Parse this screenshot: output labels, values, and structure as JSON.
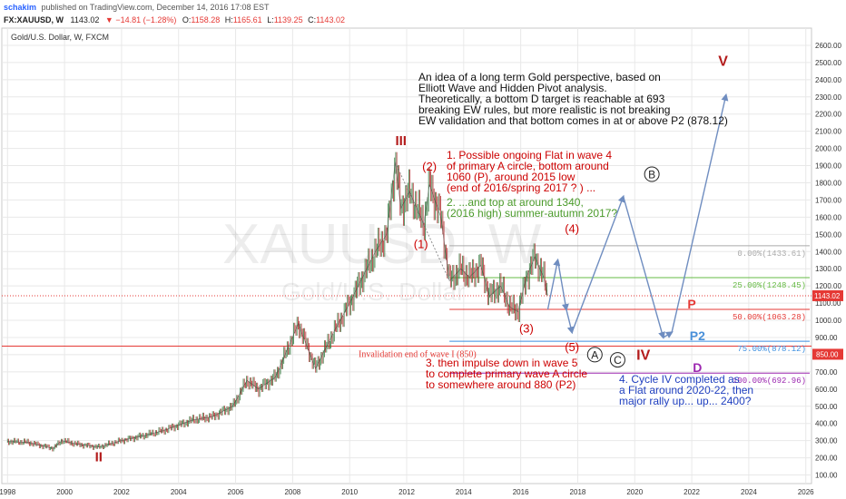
{
  "header": {
    "user": "schakim",
    "published": "published on TradingView.com, December 14, 2016 17:08 EST"
  },
  "ohlc_line": {
    "symbol": "FX:XAUUSD, W",
    "last": "1143.02",
    "change": "▼ −14.81 (−1.28%)",
    "o_label": "O:",
    "o": "1158.28",
    "h_label": "H:",
    "h": "1165.61",
    "l_label": "L:",
    "l": "1139.25",
    "c_label": "C:",
    "c": "1143.02"
  },
  "instrument": "Gold/U.S. Dollar, W, FXCM",
  "watermark": {
    "symbol": "XAUUSD, W",
    "name": "Gold/U.S. Dollar"
  },
  "colors": {
    "red": "#cc0000",
    "blue": "#1f3fbf",
    "green": "#4a9a2a",
    "arrow": "#6f8dc0",
    "price": "#e53935",
    "purple": "#9c27b0",
    "p2": "#3b8ee0",
    "grid": "#e8e8e8"
  },
  "chart_data": {
    "type": "line",
    "title": "Gold/U.S. Dollar, W, FXCM",
    "xlim": [
      1997.8,
      2026.2
    ],
    "ylim": [
      50,
      2700
    ],
    "x": [
      1998.0,
      1998.7,
      1999.6,
      1999.9,
      2000.4,
      2001.2,
      2002.0,
      2002.8,
      2003.5,
      2004.5,
      2005.2,
      2005.9,
      2006.4,
      2006.8,
      2007.4,
      2008.2,
      2008.8,
      2009.5,
      2010.0,
      2010.9,
      2011.3,
      2011.6,
      2011.8,
      2012.1,
      2012.6,
      2012.8,
      2013.2,
      2013.5,
      2013.9,
      2014.2,
      2014.6,
      2014.9,
      2015.3,
      2015.6,
      2015.9,
      2016.2,
      2016.5,
      2016.8,
      2016.95
    ],
    "values": [
      295,
      290,
      255,
      300,
      280,
      262,
      300,
      330,
      360,
      420,
      440,
      500,
      650,
      600,
      670,
      980,
      720,
      950,
      1100,
      1400,
      1500,
      1920,
      1650,
      1750,
      1560,
      1790,
      1600,
      1230,
      1300,
      1250,
      1320,
      1140,
      1200,
      1080,
      1050,
      1250,
      1370,
      1250,
      1143
    ],
    "last_price": "1143.02",
    "y_ticks": [
      "100.00",
      "200.00",
      "300.00",
      "400.00",
      "500.00",
      "600.00",
      "700.00",
      "800.00",
      "900.00",
      "1000.00",
      "1100.00",
      "1200.00",
      "1300.00",
      "1400.00",
      "1500.00",
      "1600.00",
      "1700.00",
      "1800.00",
      "1900.00",
      "2000.00",
      "2100.00",
      "2200.00",
      "2300.00",
      "2400.00",
      "2500.00",
      "2600.00"
    ],
    "x_ticks": [
      "1998",
      "2000",
      "2002",
      "2004",
      "2006",
      "2008",
      "2010",
      "2012",
      "2014",
      "2016",
      "2018",
      "2020",
      "2022",
      "2024",
      "2026"
    ],
    "fib_levels": [
      {
        "label": "0.00%(1433.61)",
        "price": 1433.61,
        "color": "#aaaaaa"
      },
      {
        "label": "25.00%(1248.45)",
        "price": 1248.45,
        "color": "#66bb44"
      },
      {
        "label": "50.00%(1063.28)",
        "price": 1063.28,
        "color": "#e53935"
      },
      {
        "label": "75.00%(878.12)",
        "price": 878.12,
        "color": "#3b8ee0"
      },
      {
        "label": "100.00%(692.96)",
        "price": 692.96,
        "color": "#9c27b0"
      }
    ],
    "invalidation": {
      "price": 850,
      "label": "Invalidation end of wave I (850)",
      "tag": "850.00"
    },
    "projection": {
      "x": [
        2016.95,
        2017.3,
        2017.6,
        2017.8,
        2019.6,
        2021.0,
        2021.3,
        2023.2
      ],
      "values": [
        1063,
        1350,
        1063,
        930,
        1720,
        900,
        930,
        2310
      ]
    },
    "wave_labels": [
      {
        "text": "II",
        "x": 2001.2,
        "y": 180,
        "color": "#b31b1b",
        "size": 15,
        "bold": true
      },
      {
        "text": "III",
        "x": 2011.8,
        "y": 2020,
        "color": "#b31b1b",
        "size": 15,
        "bold": true
      },
      {
        "text": "(2)",
        "x": 2012.8,
        "y": 1870,
        "color": "#cc0000",
        "size": 13
      },
      {
        "text": "(1)",
        "x": 2012.5,
        "y": 1420,
        "color": "#cc0000",
        "size": 13
      },
      {
        "text": "(4)",
        "x": 2017.8,
        "y": 1510,
        "color": "#cc0000",
        "size": 13
      },
      {
        "text": "(3)",
        "x": 2016.2,
        "y": 930,
        "color": "#cc0000",
        "size": 13
      },
      {
        "text": "(5)",
        "x": 2017.8,
        "y": 820,
        "color": "#cc0000",
        "size": 13
      },
      {
        "text": "V",
        "x": 2023.1,
        "y": 2480,
        "color": "#b31b1b",
        "size": 16,
        "bold": true
      },
      {
        "text": "IV",
        "x": 2020.3,
        "y": 770,
        "color": "#b31b1b",
        "size": 16,
        "bold": true
      },
      {
        "text": "P",
        "x": 2022.0,
        "y": 1070,
        "color": "#e53935",
        "size": 14,
        "bold": true
      },
      {
        "text": "P2",
        "x": 2022.2,
        "y": 885,
        "color": "#4a90d9",
        "size": 14,
        "bold": true
      },
      {
        "text": "D",
        "x": 2022.2,
        "y": 700,
        "color": "#9c27b0",
        "size": 14,
        "bold": true
      }
    ],
    "circled_labels": [
      {
        "text": "B",
        "x": 2020.6,
        "y": 1850
      },
      {
        "text": "A",
        "x": 2018.6,
        "y": 800
      },
      {
        "text": "C",
        "x": 2019.4,
        "y": 770
      }
    ]
  },
  "notes": {
    "idea": [
      "An idea of a long term Gold perspective, based on",
      "Elliott Wave and Hidden Pivot analysis.",
      "Theoretically, a bottom D target is reachable at 693",
      "breaking EW rules, but more realistic is not breaking",
      "EW validation and that bottom comes in at or above P2 (878.12)"
    ],
    "note1": [
      "1. Possible ongoing Flat in wave 4",
      "of primary A circle, bottom around",
      "1060 (P), around 2015 low",
      "(end of 2016/spring 2017 ? ) ..."
    ],
    "note2": [
      "2. ...and top at around 1340,",
      "(2016 high) summer-autumn 2017?"
    ],
    "note3": [
      "3. then impulse down in wave 5",
      "to complete primary wave A circle",
      "to somewhere around 880 (P2)"
    ],
    "note4": [
      "4. Cycle IV completed as",
      "a Flat around 2020-22, then",
      "major rally up... up... 2400?"
    ]
  }
}
